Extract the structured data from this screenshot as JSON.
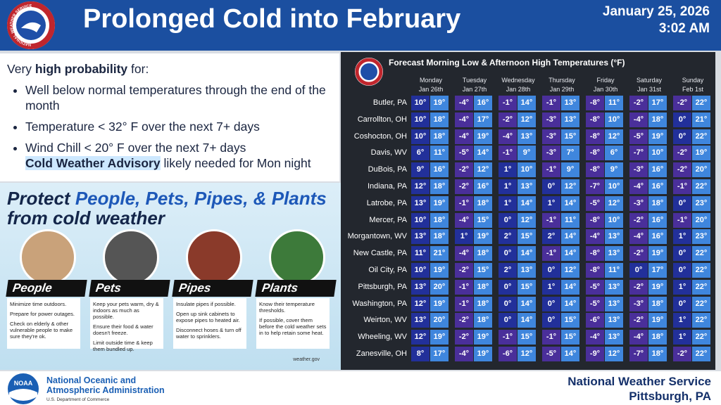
{
  "header": {
    "title": "Prolonged Cold into February",
    "date": "January 25, 2026",
    "time": "3:02 AM",
    "logo_text": "NATIONAL WEATHER SERVICE"
  },
  "outlook": {
    "intro_prefix": "Very",
    "intro_bold": "high probability",
    "intro_suffix": "for:",
    "bullets": [
      "Well below normal temperatures through the end of the month",
      "Temperature < 32° F over the next 7+ days",
      "Wind Chill < 20° F over the next 7+ days"
    ],
    "advisory_bold": "Cold Weather Advisory",
    "advisory_rest": "likely needed for Mon night"
  },
  "protect": {
    "title_lead": "Protect",
    "title_focus": "People, Pets, Pipes, & Plants",
    "subtitle": "from cold weather",
    "source": "weather.gov",
    "cards": [
      {
        "label": "People",
        "tips": [
          "Minimize time outdoors.",
          "Prepare for power outages.",
          "Check on elderly & other vulnerable people to make sure they're ok."
        ]
      },
      {
        "label": "Pets",
        "tips": [
          "Keep your pets warm, dry & indoors as much as possible.",
          "Ensure their food & water doesn't freeze.",
          "Limit outside time & keep them bundled up."
        ]
      },
      {
        "label": "Pipes",
        "tips": [
          "Insulate pipes if possible.",
          "Open up sink cabinets to expose pipes to heated air.",
          "Disconnect hoses & turn off water to sprinklers."
        ]
      },
      {
        "label": "Plants",
        "tips": [
          "Know their temperature thresholds.",
          "If possible, cover them before the cold weather sets in to help retain some heat."
        ]
      }
    ]
  },
  "table": {
    "title": "Forecast Morning Low & Afternoon High Temperatures (°F)",
    "days": [
      {
        "day": "Monday",
        "date": "Jan 26th"
      },
      {
        "day": "Tuesday",
        "date": "Jan 27th"
      },
      {
        "day": "Wednesday",
        "date": "Jan 28th"
      },
      {
        "day": "Thursday",
        "date": "Jan 29th"
      },
      {
        "day": "Friday",
        "date": "Jan 30th"
      },
      {
        "day": "Saturday",
        "date": "Jan 31st"
      },
      {
        "day": "Sunday",
        "date": "Feb 1st"
      }
    ],
    "rows": [
      {
        "city": "Butler, PA",
        "temps": [
          "10°",
          "19°",
          "-4°",
          "16°",
          "-1°",
          "14°",
          "-1°",
          "13°",
          "-8°",
          "11°",
          "-2°",
          "17°",
          "-2°",
          "22°"
        ]
      },
      {
        "city": "Carrollton, OH",
        "temps": [
          "10°",
          "18°",
          "-4°",
          "17°",
          "-2°",
          "12°",
          "-3°",
          "13°",
          "-8°",
          "10°",
          "-4°",
          "18°",
          "0°",
          "21°"
        ]
      },
      {
        "city": "Coshocton, OH",
        "temps": [
          "10°",
          "18°",
          "-4°",
          "19°",
          "-4°",
          "13°",
          "-3°",
          "15°",
          "-8°",
          "12°",
          "-5°",
          "19°",
          "0°",
          "22°"
        ]
      },
      {
        "city": "Davis, WV",
        "temps": [
          "6°",
          "11°",
          "-5°",
          "14°",
          "-1°",
          "9°",
          "-3°",
          "7°",
          "-8°",
          "6°",
          "-7°",
          "10°",
          "-2°",
          "19°"
        ]
      },
      {
        "city": "DuBois, PA",
        "temps": [
          "9°",
          "16°",
          "-2°",
          "12°",
          "1°",
          "10°",
          "-1°",
          "9°",
          "-8°",
          "9°",
          "-3°",
          "16°",
          "-2°",
          "20°"
        ]
      },
      {
        "city": "Indiana, PA",
        "temps": [
          "12°",
          "18°",
          "-2°",
          "16°",
          "1°",
          "13°",
          "0°",
          "12°",
          "-7°",
          "10°",
          "-4°",
          "16°",
          "-1°",
          "22°"
        ]
      },
      {
        "city": "Latrobe, PA",
        "temps": [
          "13°",
          "19°",
          "-1°",
          "18°",
          "1°",
          "14°",
          "1°",
          "14°",
          "-5°",
          "12°",
          "-3°",
          "18°",
          "0°",
          "23°"
        ]
      },
      {
        "city": "Mercer, PA",
        "temps": [
          "10°",
          "18°",
          "-4°",
          "15°",
          "0°",
          "12°",
          "-1°",
          "11°",
          "-8°",
          "10°",
          "-2°",
          "16°",
          "-1°",
          "20°"
        ]
      },
      {
        "city": "Morgantown, WV",
        "temps": [
          "13°",
          "18°",
          "1°",
          "19°",
          "2°",
          "15°",
          "2°",
          "14°",
          "-4°",
          "13°",
          "-4°",
          "16°",
          "1°",
          "23°"
        ]
      },
      {
        "city": "New Castle, PA",
        "temps": [
          "11°",
          "21°",
          "-4°",
          "18°",
          "0°",
          "14°",
          "-1°",
          "14°",
          "-8°",
          "13°",
          "-2°",
          "19°",
          "0°",
          "22°"
        ]
      },
      {
        "city": "Oil City, PA",
        "temps": [
          "10°",
          "19°",
          "-2°",
          "15°",
          "2°",
          "13°",
          "0°",
          "12°",
          "-8°",
          "11°",
          "0°",
          "17°",
          "0°",
          "22°"
        ]
      },
      {
        "city": "Pittsburgh, PA",
        "temps": [
          "13°",
          "20°",
          "-1°",
          "18°",
          "0°",
          "15°",
          "1°",
          "14°",
          "-5°",
          "13°",
          "-2°",
          "19°",
          "1°",
          "22°"
        ]
      },
      {
        "city": "Washington, PA",
        "temps": [
          "12°",
          "19°",
          "-1°",
          "18°",
          "0°",
          "14°",
          "0°",
          "14°",
          "-5°",
          "13°",
          "-3°",
          "18°",
          "0°",
          "22°"
        ]
      },
      {
        "city": "Weirton, WV",
        "temps": [
          "13°",
          "20°",
          "-2°",
          "18°",
          "0°",
          "14°",
          "0°",
          "15°",
          "-6°",
          "13°",
          "-2°",
          "19°",
          "1°",
          "22°"
        ]
      },
      {
        "city": "Wheeling, WV",
        "temps": [
          "12°",
          "19°",
          "-2°",
          "19°",
          "-1°",
          "15°",
          "-1°",
          "15°",
          "-4°",
          "13°",
          "-4°",
          "18°",
          "1°",
          "22°"
        ]
      },
      {
        "city": "Zanesville, OH",
        "temps": [
          "8°",
          "17°",
          "-4°",
          "19°",
          "-6°",
          "12°",
          "-5°",
          "14°",
          "-9°",
          "12°",
          "-7°",
          "18°",
          "-2°",
          "22°"
        ]
      }
    ]
  },
  "footer": {
    "logo": "NOAA",
    "org_line1": "National Oceanic and",
    "org_line2": "Atmospheric Administration",
    "dept": "U.S. Department of Commerce",
    "office": "National Weather Service",
    "location": "Pittsburgh, PA"
  }
}
